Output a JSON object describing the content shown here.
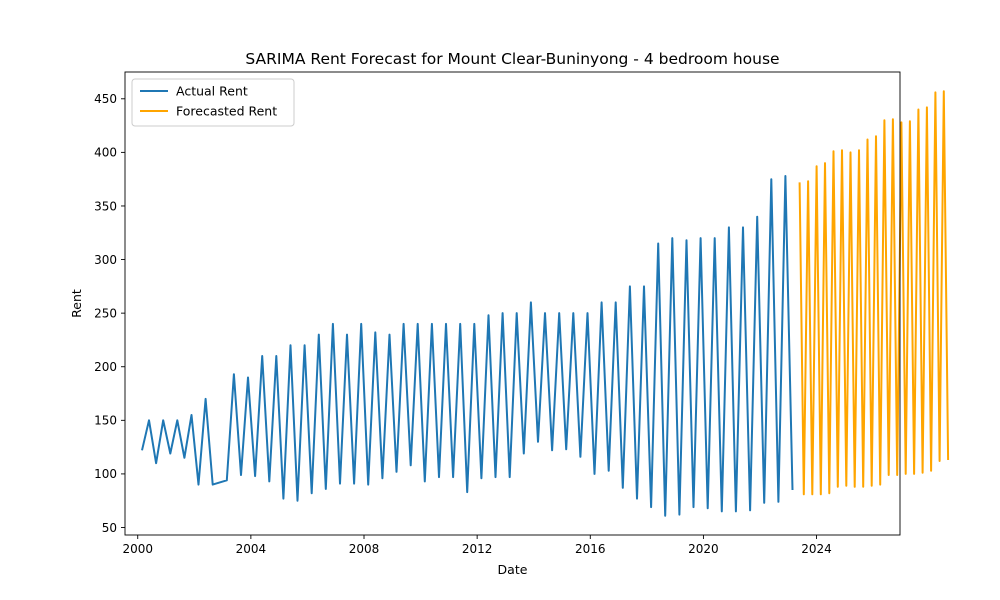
{
  "chart_data": {
    "type": "line",
    "title": "SARIMA Rent Forecast for Mount Clear-Buninyong - 4 bedroom house",
    "xlabel": "Date",
    "ylabel": "Rent",
    "xlim": [
      1999.55,
      2026.95
    ],
    "ylim": [
      43,
      475
    ],
    "x_ticks": [
      2000,
      2004,
      2008,
      2012,
      2016,
      2020,
      2024
    ],
    "y_ticks": [
      50,
      100,
      150,
      200,
      250,
      300,
      350,
      400,
      450
    ],
    "grid": false,
    "legend_position": "top-left",
    "series": [
      {
        "name": "Actual Rent",
        "color": "#1f77b4",
        "points": [
          [
            2000.15,
            122
          ],
          [
            2000.4,
            150
          ],
          [
            2000.65,
            110
          ],
          [
            2000.9,
            150
          ],
          [
            2001.15,
            119
          ],
          [
            2001.4,
            150
          ],
          [
            2001.65,
            115
          ],
          [
            2001.9,
            155
          ],
          [
            2002.15,
            90
          ],
          [
            2002.4,
            170
          ],
          [
            2002.65,
            90
          ],
          [
            2003.15,
            94
          ],
          [
            2003.4,
            193
          ],
          [
            2003.65,
            99
          ],
          [
            2003.9,
            190
          ],
          [
            2004.15,
            98
          ],
          [
            2004.4,
            210
          ],
          [
            2004.65,
            93
          ],
          [
            2004.9,
            210
          ],
          [
            2005.15,
            77
          ],
          [
            2005.4,
            220
          ],
          [
            2005.65,
            75
          ],
          [
            2005.9,
            220
          ],
          [
            2006.15,
            82
          ],
          [
            2006.4,
            230
          ],
          [
            2006.65,
            86
          ],
          [
            2006.9,
            240
          ],
          [
            2007.15,
            91
          ],
          [
            2007.4,
            230
          ],
          [
            2007.65,
            91
          ],
          [
            2007.9,
            240
          ],
          [
            2008.15,
            90
          ],
          [
            2008.4,
            232
          ],
          [
            2008.65,
            96
          ],
          [
            2008.9,
            230
          ],
          [
            2009.15,
            102
          ],
          [
            2009.4,
            240
          ],
          [
            2009.65,
            108
          ],
          [
            2009.9,
            240
          ],
          [
            2010.15,
            93
          ],
          [
            2010.4,
            240
          ],
          [
            2010.65,
            97
          ],
          [
            2010.9,
            240
          ],
          [
            2011.15,
            97
          ],
          [
            2011.4,
            240
          ],
          [
            2011.65,
            83
          ],
          [
            2011.9,
            240
          ],
          [
            2012.15,
            96
          ],
          [
            2012.4,
            248
          ],
          [
            2012.65,
            97
          ],
          [
            2012.9,
            250
          ],
          [
            2013.15,
            97
          ],
          [
            2013.4,
            250
          ],
          [
            2013.65,
            119
          ],
          [
            2013.9,
            260
          ],
          [
            2014.15,
            130
          ],
          [
            2014.4,
            250
          ],
          [
            2014.65,
            122
          ],
          [
            2014.9,
            250
          ],
          [
            2015.15,
            123
          ],
          [
            2015.4,
            250
          ],
          [
            2015.65,
            116
          ],
          [
            2015.9,
            250
          ],
          [
            2016.15,
            100
          ],
          [
            2016.4,
            260
          ],
          [
            2016.65,
            103
          ],
          [
            2016.9,
            260
          ],
          [
            2017.15,
            87
          ],
          [
            2017.4,
            275
          ],
          [
            2017.65,
            77
          ],
          [
            2017.9,
            275
          ],
          [
            2018.15,
            69
          ],
          [
            2018.4,
            315
          ],
          [
            2018.65,
            61
          ],
          [
            2018.9,
            320
          ],
          [
            2019.15,
            62
          ],
          [
            2019.4,
            318
          ],
          [
            2019.65,
            69
          ],
          [
            2019.9,
            320
          ],
          [
            2020.15,
            68
          ],
          [
            2020.4,
            320
          ],
          [
            2020.65,
            65
          ],
          [
            2020.9,
            330
          ],
          [
            2021.15,
            65
          ],
          [
            2021.4,
            330
          ],
          [
            2021.65,
            66
          ],
          [
            2021.9,
            340
          ],
          [
            2022.15,
            73
          ],
          [
            2022.4,
            375
          ],
          [
            2022.65,
            74
          ],
          [
            2022.9,
            378
          ],
          [
            2023.15,
            85
          ]
        ]
      },
      {
        "name": "Forecasted Rent",
        "color": "#ffa500",
        "points": [
          [
            2023.4,
            372
          ],
          [
            2023.55,
            81
          ],
          [
            2023.7,
            373
          ],
          [
            2023.85,
            81
          ],
          [
            2024.0,
            387
          ],
          [
            2024.15,
            81
          ],
          [
            2024.3,
            390
          ],
          [
            2024.45,
            82
          ],
          [
            2024.6,
            401
          ],
          [
            2024.75,
            88
          ],
          [
            2024.9,
            402
          ],
          [
            2025.05,
            89
          ],
          [
            2025.2,
            400
          ],
          [
            2025.35,
            88
          ],
          [
            2025.5,
            402
          ],
          [
            2025.65,
            88
          ],
          [
            2025.8,
            412
          ],
          [
            2025.95,
            89
          ],
          [
            2026.1,
            415
          ],
          [
            2026.25,
            90
          ],
          [
            2026.4,
            430
          ],
          [
            2026.55,
            99
          ],
          [
            2026.7,
            431
          ],
          [
            2026.85,
            99
          ],
          [
            2027.0,
            428
          ],
          [
            2027.15,
            100
          ],
          [
            2027.3,
            429
          ],
          [
            2027.45,
            100
          ],
          [
            2027.6,
            440
          ],
          [
            2027.75,
            101
          ],
          [
            2027.9,
            442
          ],
          [
            2028.05,
            103
          ],
          [
            2028.2,
            456
          ],
          [
            2028.35,
            112
          ],
          [
            2028.5,
            457
          ],
          [
            2028.65,
            113
          ]
        ]
      }
    ]
  }
}
